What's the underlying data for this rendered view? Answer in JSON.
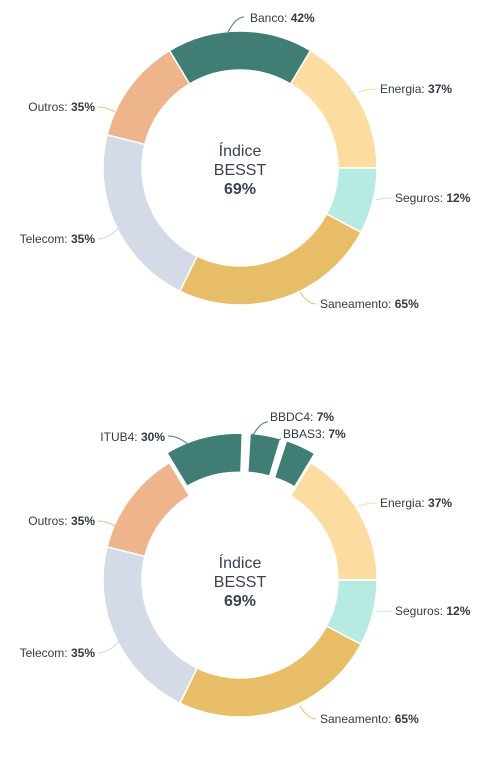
{
  "chart_data": [
    {
      "type": "pie",
      "center_text": {
        "line1": "Índice",
        "line2": "BESST",
        "value": "69%"
      },
      "slices": [
        {
          "label": "Banco",
          "value": "42%",
          "color": "#407d74",
          "start": -31,
          "end": 31
        },
        {
          "label": "Energia",
          "value": "37%",
          "color": "#fcdca1",
          "start": 31,
          "end": 90
        },
        {
          "label": "Seguros",
          "value": "12%",
          "color": "#b7ebe1",
          "start": 90,
          "end": 118
        },
        {
          "label": "Saneamento",
          "value": "65%",
          "color": "#e8bd68",
          "start": 118,
          "end": 206
        },
        {
          "label": "Telecom",
          "value": "35%",
          "color": "#d5dbe6",
          "start": 206,
          "end": 284
        },
        {
          "label": "Outros",
          "value": "35%",
          "color": "#eeb48c",
          "start": 284,
          "end": 329
        }
      ]
    },
    {
      "type": "pie",
      "center_text": {
        "line1": "Índice",
        "line2": "BESST",
        "value": "69%"
      },
      "slices": [
        {
          "label": "ITUB4",
          "value": "30%",
          "color": "#407d74",
          "start": -31,
          "end": 2
        },
        {
          "label": "BBDC4",
          "value": "7%",
          "color": "#407d74",
          "start": 3.5,
          "end": 16.5
        },
        {
          "label": "BBAS3",
          "value": "7%",
          "color": "#407d74",
          "start": 18,
          "end": 31
        },
        {
          "label": "Energia",
          "value": "37%",
          "color": "#fcdca1",
          "start": 31,
          "end": 90
        },
        {
          "label": "Seguros",
          "value": "12%",
          "color": "#b7ebe1",
          "start": 90,
          "end": 118
        },
        {
          "label": "Saneamento",
          "value": "65%",
          "color": "#e8bd68",
          "start": 118,
          "end": 206
        },
        {
          "label": "Telecom",
          "value": "35%",
          "color": "#d5dbe6",
          "start": 206,
          "end": 284
        },
        {
          "label": "Outros",
          "value": "35%",
          "color": "#eeb48c",
          "start": 284,
          "end": 329
        }
      ]
    }
  ]
}
